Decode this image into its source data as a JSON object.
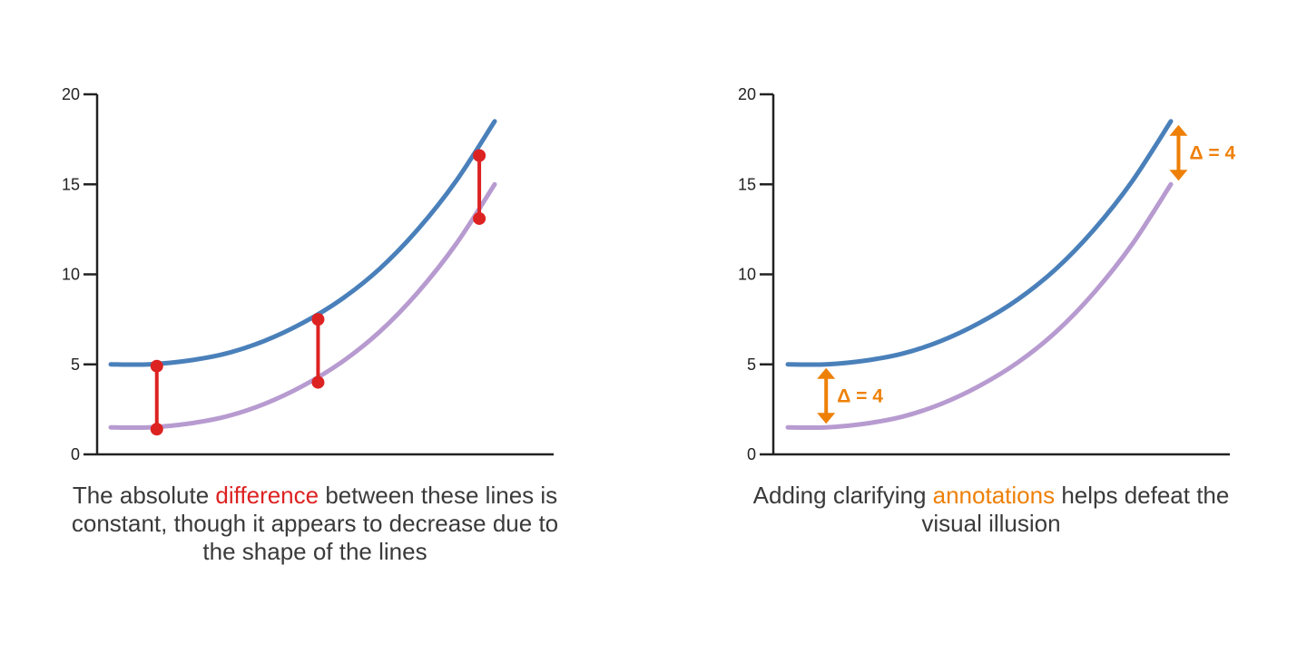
{
  "colors": {
    "top_line": "#4a80ba",
    "bottom_line": "#b79bd0",
    "difference": "#dd2222",
    "annotation": "#ee8008",
    "axis": "#222222",
    "text": "#3a3a3a"
  },
  "captions": {
    "left": {
      "before": "The absolute ",
      "highlight": "difference",
      "after": " between these lines is constant, though it appears to decrease due to the shape of the lines"
    },
    "right": {
      "before": "Adding clarifying ",
      "highlight": "annotations",
      "after": " helps defeat the visual illusion"
    }
  },
  "chart_data": [
    {
      "type": "line",
      "ylim": [
        0,
        20
      ],
      "y_ticks": [
        0,
        5,
        10,
        15,
        20
      ],
      "x_ticks_shown": false,
      "series": [
        {
          "color": "#4a80ba",
          "x": [
            0,
            0.1,
            0.2,
            0.3,
            0.4,
            0.5,
            0.6,
            0.7,
            0.8,
            0.9,
            1.0
          ],
          "y": [
            5.0,
            5.0,
            5.2,
            5.6,
            6.3,
            7.3,
            8.6,
            10.3,
            12.5,
            15.2,
            18.5
          ]
        },
        {
          "color": "#b79bd0",
          "x": [
            0,
            0.1,
            0.2,
            0.3,
            0.4,
            0.5,
            0.6,
            0.7,
            0.8,
            0.9,
            1.0
          ],
          "y": [
            1.5,
            1.5,
            1.7,
            2.1,
            2.8,
            3.8,
            5.1,
            6.8,
            9.0,
            11.7,
            15.0
          ]
        }
      ],
      "difference_markers": [
        {
          "x": 0.12,
          "y_top": 4.9,
          "y_bottom": 1.4
        },
        {
          "x": 0.54,
          "y_top": 7.5,
          "y_bottom": 4.0
        },
        {
          "x": 0.96,
          "y_top": 16.6,
          "y_bottom": 13.1
        }
      ]
    },
    {
      "type": "line",
      "ylim": [
        0,
        20
      ],
      "y_ticks": [
        0,
        5,
        10,
        15,
        20
      ],
      "x_ticks_shown": false,
      "series": [
        {
          "color": "#4a80ba",
          "x": [
            0,
            0.1,
            0.2,
            0.3,
            0.4,
            0.5,
            0.6,
            0.7,
            0.8,
            0.9,
            1.0
          ],
          "y": [
            5.0,
            5.0,
            5.2,
            5.6,
            6.3,
            7.3,
            8.6,
            10.3,
            12.5,
            15.2,
            18.5
          ]
        },
        {
          "color": "#b79bd0",
          "x": [
            0,
            0.1,
            0.2,
            0.3,
            0.4,
            0.5,
            0.6,
            0.7,
            0.8,
            0.9,
            1.0
          ],
          "y": [
            1.5,
            1.5,
            1.7,
            2.1,
            2.8,
            3.8,
            5.1,
            6.8,
            9.0,
            11.7,
            15.0
          ]
        }
      ],
      "annotations": [
        {
          "text": "Δ = 4",
          "x": 0.1,
          "y_from": 4.7,
          "y_to": 1.8
        },
        {
          "text": "Δ = 4",
          "x": 1.02,
          "y_from": 18.2,
          "y_to": 15.3
        }
      ]
    }
  ]
}
